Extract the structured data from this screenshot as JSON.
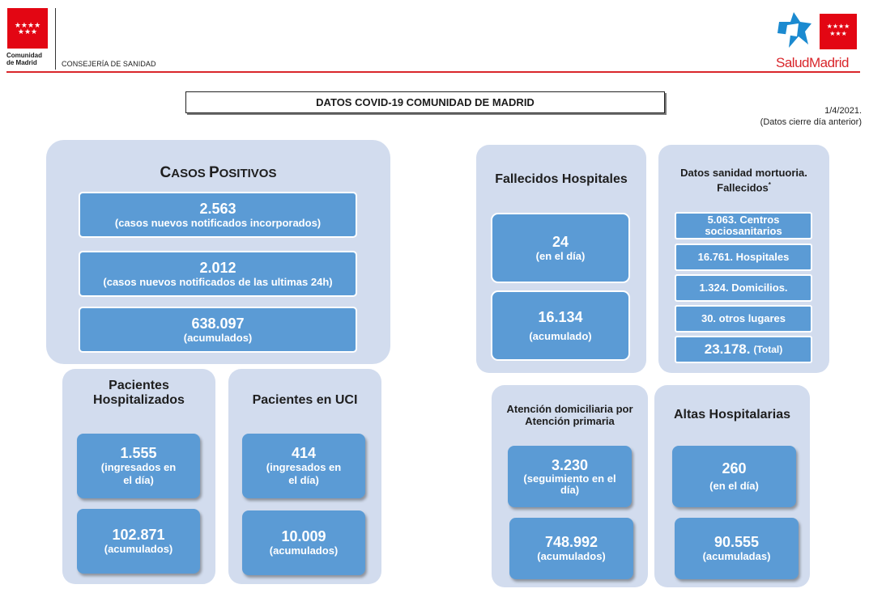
{
  "header": {
    "org_line1": "Comunidad",
    "org_line2": "de Madrid",
    "department": "CONSEJERÍA DE SANIDAD",
    "brand": "SaludMadrid",
    "brand_color": "#d9262b",
    "icon": "madrid-stars-flag-icon"
  },
  "title": "DATOS COVID-19 COMUNIDAD DE MADRID",
  "date": "1/4/2021.",
  "date_note": "(Datos cierre día anterior)",
  "colors": {
    "panel": "#d2dcee",
    "box": "#5b9bd5"
  },
  "casos": {
    "title_big1": "C",
    "title_small1": "ASOS ",
    "title_big2": "P",
    "title_small2": "OSITIVOS",
    "new_notified": "2.563",
    "new_notified_label": "(casos nuevos notificados incorporados)",
    "new_24h": "2.012",
    "new_24h_label": "(casos nuevos notificados de las ultimas 24h)",
    "accumulated": "638.097",
    "accumulated_label": "(acumulados)"
  },
  "hospitalizados": {
    "title1": "Pacientes",
    "title2": "Hospitalizados",
    "day": "1.555",
    "day_label1": "(ingresados en",
    "day_label2": "el día)",
    "accumulated": "102.871",
    "accumulated_label": "(acumulados)"
  },
  "uci": {
    "title": "Pacientes en UCI",
    "day": "414",
    "day_label1": "(ingresados en",
    "day_label2": "el día)",
    "accumulated": "10.009",
    "accumulated_label": "(acumulados)"
  },
  "fallecidos": {
    "title": "Fallecidos Hospitales",
    "day": "24",
    "day_label": "(en el día)",
    "accumulated": "16.134",
    "accumulated_label": "(acumulado)"
  },
  "mortuoria": {
    "title1": "Datos sanidad mortuoria.",
    "title2": "Fallecidos",
    "title_mark": "*",
    "items": [
      {
        "line1": "5.063. Centros",
        "line2": "sociosanitarios"
      },
      {
        "line1": "16.761. Hospitales"
      },
      {
        "line1": "1.324. Domicilios."
      },
      {
        "line1": "30. otros lugares"
      }
    ],
    "total_value": "23.178.",
    "total_label": "(Total)"
  },
  "domiciliaria": {
    "title1": "Atención domiciliaria por",
    "title2": "Atención primaria",
    "followup": "3.230",
    "followup_label1": "(seguimiento en el",
    "followup_label2": "día)",
    "accumulated": "748.992",
    "accumulated_label": "(acumulados)"
  },
  "altas": {
    "title": "Altas Hospitalarias",
    "day": "260",
    "day_label": "(en el día)",
    "accumulated": "90.555",
    "accumulated_label": "(acumuladas)"
  }
}
